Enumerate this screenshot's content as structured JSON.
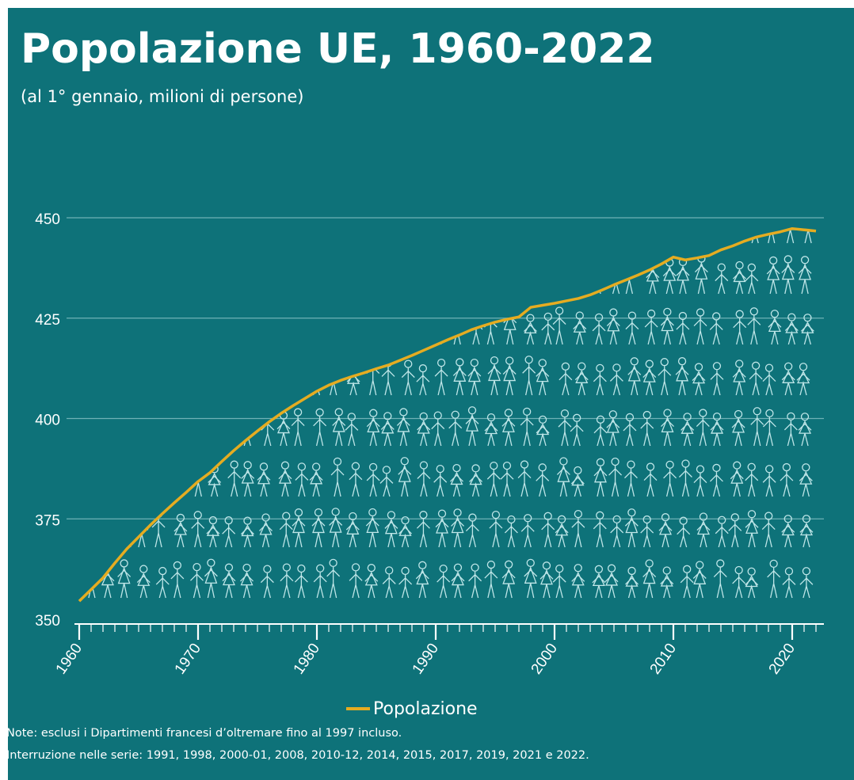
{
  "title": "Popolazione UE, 1960-2022",
  "subtitle": "(al 1° gennaio, milioni di persone)",
  "notes": [
    "Note: esclusi i Dipartimenti francesi d’oltremare fino al 1997 incluso.",
    "Interruzione nelle serie: 1991, 1998, 2000-01, 2008, 2010-12, 2014, 2015, 2017, 2019, 2021 e 2022."
  ],
  "colors": {
    "background": "#0e7279",
    "line": "#e5ac21",
    "grid": "#6fb2b6",
    "figures": "#bfe6e8",
    "text": "#ffffff"
  },
  "chart_data": {
    "type": "line",
    "title": "Popolazione UE, 1960-2022",
    "subtitle": "(al 1° gennaio, milioni di persone)",
    "xlabel": "",
    "ylabel": "",
    "xlim": [
      1960,
      2022
    ],
    "ylim": [
      350,
      450
    ],
    "yticks": [
      350,
      375,
      400,
      425,
      450
    ],
    "xticks": [
      1960,
      1970,
      1980,
      1990,
      2000,
      2010,
      2020
    ],
    "grid": true,
    "legend_position": "bottom",
    "series": [
      {
        "name": "Popolazione",
        "color": "#e5ac21",
        "x": [
          1960,
          1961,
          1962,
          1963,
          1964,
          1965,
          1966,
          1967,
          1968,
          1969,
          1970,
          1971,
          1972,
          1973,
          1974,
          1975,
          1976,
          1977,
          1978,
          1979,
          1980,
          1981,
          1982,
          1983,
          1984,
          1985,
          1986,
          1987,
          1988,
          1989,
          1990,
          1991,
          1992,
          1993,
          1994,
          1995,
          1996,
          1997,
          1998,
          1999,
          2000,
          2001,
          2002,
          2003,
          2004,
          2005,
          2006,
          2007,
          2008,
          2009,
          2010,
          2011,
          2012,
          2013,
          2014,
          2015,
          2016,
          2017,
          2018,
          2019,
          2020,
          2021,
          2022
        ],
        "y": [
          354.5,
          357.4,
          360.3,
          364.0,
          367.5,
          370.5,
          373.5,
          376.3,
          379.0,
          381.6,
          384.3,
          386.5,
          389.3,
          392.0,
          394.5,
          396.9,
          399.2,
          401.3,
          403.2,
          405.0,
          406.8,
          408.3,
          409.5,
          410.5,
          411.4,
          412.4,
          413.3,
          414.5,
          415.7,
          417.0,
          418.3,
          419.6,
          420.8,
          422.1,
          423.1,
          424.0,
          424.7,
          425.3,
          427.7,
          428.2,
          428.7,
          429.3,
          429.9,
          430.8,
          432.0,
          433.3,
          434.5,
          435.7,
          437.0,
          438.5,
          440.2,
          439.5,
          440.0,
          440.6,
          442.0,
          443.0,
          444.2,
          445.2,
          445.9,
          446.5,
          447.3,
          447.0,
          446.7
        ]
      }
    ]
  }
}
